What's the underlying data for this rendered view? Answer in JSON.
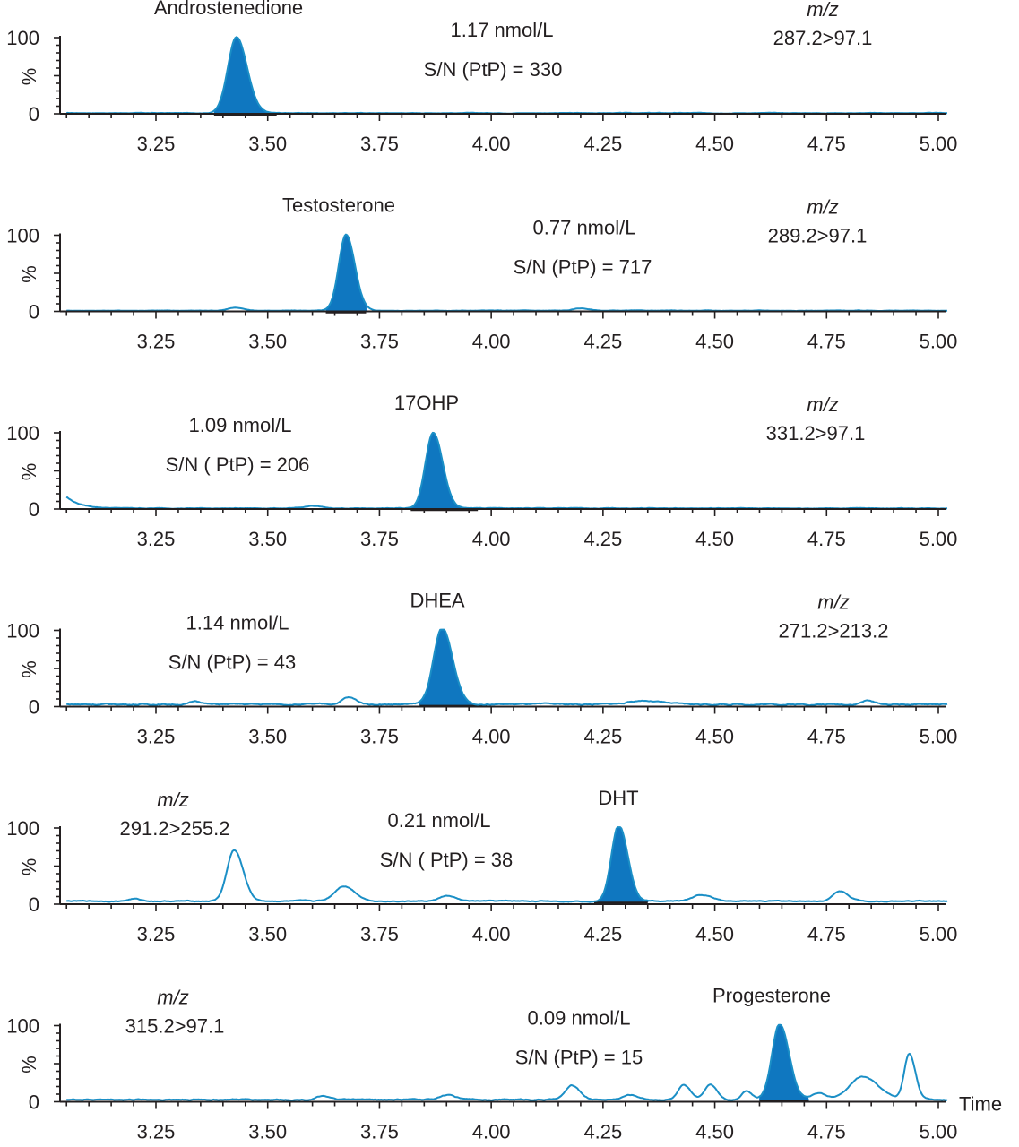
{
  "chart_data": [
    {
      "type": "line",
      "compound": "Androstenedione",
      "concentration": "1.17 nmol/L",
      "sn": "S/N (PtP) = 330",
      "mz_label": "m/z",
      "transition": "287.2>97.1",
      "xlabel": "",
      "ylabel": "%",
      "yticks": [
        "100",
        "0"
      ],
      "xticks": [
        "3.25",
        "3.50",
        "3.75",
        "4.00",
        "4.25",
        "4.50",
        "4.75",
        "5.00"
      ],
      "xlim": [
        3.05,
        5.02
      ],
      "ylim": [
        0,
        100
      ],
      "baseline_level": 1,
      "noise_amplitude": 0.6,
      "peaks": [
        {
          "rt": 3.43,
          "height": 100,
          "width": 0.019,
          "filled": true
        }
      ],
      "integration": [
        3.38,
        3.52
      ]
    },
    {
      "type": "line",
      "compound": "Testosterone",
      "concentration": "0.77 nmol/L",
      "sn": "S/N (PtP) = 717",
      "mz_label": "m/z",
      "transition": "289.2>97.1",
      "xlabel": "",
      "ylabel": "%",
      "yticks": [
        "100",
        "0"
      ],
      "xticks": [
        "3.25",
        "3.50",
        "3.75",
        "4.00",
        "4.25",
        "4.50",
        "4.75",
        "5.00"
      ],
      "xlim": [
        3.05,
        5.02
      ],
      "ylim": [
        0,
        100
      ],
      "baseline_level": 1,
      "noise_amplitude": 0.6,
      "peaks": [
        {
          "rt": 3.425,
          "height": 4,
          "width": 0.015,
          "filled": false
        },
        {
          "rt": 3.675,
          "height": 100,
          "width": 0.016,
          "filled": true
        },
        {
          "rt": 4.2,
          "height": 3,
          "width": 0.015,
          "filled": false
        }
      ],
      "integration": [
        3.63,
        3.72
      ]
    },
    {
      "type": "line",
      "compound": "17OHP",
      "concentration": "1.09 nmol/L",
      "sn": "S/N ( PtP) = 206",
      "mz_label": "m/z",
      "transition": "331.2>97.1",
      "xlabel": "",
      "ylabel": "%",
      "yticks": [
        "100",
        "0"
      ],
      "xticks": [
        "3.25",
        "3.50",
        "3.75",
        "4.00",
        "4.25",
        "4.50",
        "4.75",
        "5.00"
      ],
      "xlim": [
        3.05,
        5.02
      ],
      "ylim": [
        0,
        100
      ],
      "baseline_level": 1,
      "noise_amplitude": 0.8,
      "start_artifact": {
        "height": 15,
        "decay": 0.03
      },
      "peaks": [
        {
          "rt": 3.6,
          "height": 3,
          "width": 0.015,
          "filled": false
        },
        {
          "rt": 3.87,
          "height": 100,
          "width": 0.017,
          "filled": true
        }
      ],
      "integration": [
        3.82,
        3.97
      ]
    },
    {
      "type": "line",
      "compound": "DHEA",
      "concentration": "1.14 nmol/L",
      "sn": "S/N (PtP) = 43",
      "mz_label": "m/z",
      "transition": "271.2>213.2",
      "xlabel": "",
      "ylabel": "%",
      "yticks": [
        "100",
        "0"
      ],
      "xticks": [
        "3.25",
        "3.50",
        "3.75",
        "4.00",
        "4.25",
        "4.50",
        "4.75",
        "5.00"
      ],
      "xlim": [
        3.05,
        5.02
      ],
      "ylim": [
        0,
        100
      ],
      "baseline_level": 3,
      "noise_amplitude": 1.6,
      "peaks": [
        {
          "rt": 3.34,
          "height": 4,
          "width": 0.012,
          "filled": false
        },
        {
          "rt": 3.68,
          "height": 9,
          "width": 0.014,
          "filled": false
        },
        {
          "rt": 3.89,
          "height": 100,
          "width": 0.019,
          "filled": true
        },
        {
          "rt": 4.34,
          "height": 5,
          "width": 0.03,
          "filled": false
        },
        {
          "rt": 4.84,
          "height": 5,
          "width": 0.012,
          "filled": false
        }
      ],
      "integration": [
        3.84,
        3.99
      ]
    },
    {
      "type": "line",
      "compound": "DHT",
      "concentration": "0.21 nmol/L",
      "sn": "S/N ( PtP) = 38",
      "mz_label": "m/z",
      "transition": "291.2>255.2",
      "xlabel": "",
      "ylabel": "%",
      "yticks": [
        "100",
        "0"
      ],
      "xticks": [
        "3.25",
        "3.50",
        "3.75",
        "4.00",
        "4.25",
        "4.50",
        "4.75",
        "5.00"
      ],
      "xlim": [
        3.05,
        5.02
      ],
      "ylim": [
        0,
        100
      ],
      "baseline_level": 4,
      "noise_amplitude": 1.2,
      "peaks": [
        {
          "rt": 3.2,
          "height": 3,
          "width": 0.012,
          "filled": false
        },
        {
          "rt": 3.425,
          "height": 67,
          "width": 0.016,
          "filled": false
        },
        {
          "rt": 3.67,
          "height": 20,
          "width": 0.02,
          "filled": false
        },
        {
          "rt": 3.9,
          "height": 7,
          "width": 0.015,
          "filled": false
        },
        {
          "rt": 4.285,
          "height": 100,
          "width": 0.016,
          "filled": true
        },
        {
          "rt": 4.47,
          "height": 8,
          "width": 0.02,
          "filled": false
        },
        {
          "rt": 4.78,
          "height": 13,
          "width": 0.015,
          "filled": false
        }
      ],
      "integration": [
        4.23,
        4.35
      ]
    },
    {
      "type": "line",
      "compound": "Progesterone",
      "concentration": "0.09 nmol/L",
      "sn": "S/N (PtP) = 15",
      "mz_label": "m/z",
      "transition": "315.2>97.1",
      "xlabel": "Time",
      "ylabel": "%",
      "yticks": [
        "100",
        "0"
      ],
      "xticks": [
        "3.25",
        "3.50",
        "3.75",
        "4.00",
        "4.25",
        "4.50",
        "4.75",
        "5.00"
      ],
      "xlim": [
        3.05,
        5.02
      ],
      "ylim": [
        0,
        100
      ],
      "baseline_level": 3,
      "noise_amplitude": 1.4,
      "peaks": [
        {
          "rt": 3.62,
          "height": 4,
          "width": 0.012,
          "filled": false
        },
        {
          "rt": 3.9,
          "height": 6,
          "width": 0.015,
          "filled": false
        },
        {
          "rt": 4.18,
          "height": 18,
          "width": 0.014,
          "filled": false
        },
        {
          "rt": 4.31,
          "height": 6,
          "width": 0.015,
          "filled": false
        },
        {
          "rt": 4.43,
          "height": 18,
          "width": 0.012,
          "filled": false
        },
        {
          "rt": 4.49,
          "height": 20,
          "width": 0.012,
          "filled": false
        },
        {
          "rt": 4.57,
          "height": 12,
          "width": 0.01,
          "filled": false
        },
        {
          "rt": 4.645,
          "height": 100,
          "width": 0.017,
          "filled": true
        },
        {
          "rt": 4.73,
          "height": 8,
          "width": 0.015,
          "filled": false
        },
        {
          "rt": 4.83,
          "height": 30,
          "width": 0.028,
          "filled": false
        },
        {
          "rt": 4.935,
          "height": 60,
          "width": 0.011,
          "filled": false
        }
      ],
      "integration": [
        4.6,
        4.71
      ]
    }
  ]
}
